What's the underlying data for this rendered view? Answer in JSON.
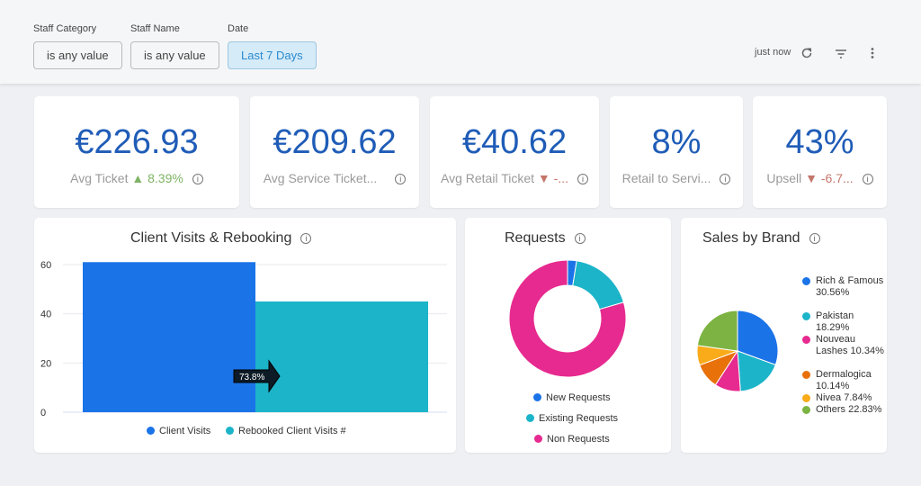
{
  "filters": [
    {
      "label": "Staff Category",
      "value": "is any value"
    },
    {
      "label": "Staff Name",
      "value": "is any value"
    },
    {
      "label": "Date",
      "value": "Last 7 Days"
    }
  ],
  "header": {
    "updated": "just now",
    "icons": [
      "refresh-icon",
      "filter-icon",
      "more-vertical-icon"
    ]
  },
  "kpis": [
    {
      "value": "€226.93",
      "label": "Avg Ticket",
      "delta": "▲ 8.39%",
      "delta_dir": "up"
    },
    {
      "value": "€209.62",
      "label": "Avg Service Ticket...",
      "delta": "",
      "delta_dir": ""
    },
    {
      "value": "€40.62",
      "label": "Avg Retail Ticket",
      "delta": "▼ -...",
      "delta_dir": "down"
    },
    {
      "value": "8%",
      "label": "Retail to Servi...",
      "delta": "",
      "delta_dir": ""
    },
    {
      "value": "43%",
      "label": "Upsell",
      "delta": "▼ -6.7...",
      "delta_dir": "down"
    }
  ],
  "colors": {
    "primary": "#1f5cb7",
    "blue": "#1b73e8",
    "teal": "#1cb4c9",
    "pink": "#e62a8f",
    "orange": "#e8710a",
    "yellow": "#f9ab19",
    "green": "#7cb342"
  },
  "chart_data": [
    {
      "type": "bar",
      "title": "Client Visits & Rebooking",
      "ylim": [
        0,
        60
      ],
      "yticks": [
        "0",
        "20",
        "40",
        "60"
      ],
      "grid": true,
      "legend": "bottom",
      "series": [
        {
          "name": "Client Visits",
          "value": 61,
          "color": "#1b73e8"
        },
        {
          "name": "Rebooked Client Visits #",
          "value": 45,
          "color": "#1cb4c9"
        }
      ],
      "annotation": "73.8%"
    },
    {
      "type": "pie",
      "donut": true,
      "title": "Requests",
      "legend": "bottom",
      "slices": [
        {
          "name": "New Requests",
          "value": 2.5,
          "color": "#1b73e8"
        },
        {
          "name": "Existing Requests",
          "value": 18,
          "color": "#1cb4c9"
        },
        {
          "name": "Non Requests",
          "value": 79.5,
          "color": "#e62a8f"
        }
      ]
    },
    {
      "type": "pie",
      "title": "Sales by Brand",
      "legend": "right",
      "slices": [
        {
          "name": "Rich & Famous",
          "label": "30.56%",
          "value": 30.56,
          "color": "#1b73e8"
        },
        {
          "name": "Pakistan",
          "label": "18.29%",
          "value": 18.29,
          "color": "#1cb4c9"
        },
        {
          "name": "Nouveau Lashes",
          "label": "10.34%",
          "value": 10.34,
          "color": "#e62a8f"
        },
        {
          "name": "Dermalogica",
          "label": "10.14%",
          "value": 10.14,
          "color": "#e8710a"
        },
        {
          "name": "Nivea",
          "label": "7.84%",
          "value": 7.84,
          "color": "#f9ab19"
        },
        {
          "name": "Others",
          "label": "22.83%",
          "value": 22.83,
          "color": "#7cb342"
        }
      ]
    }
  ]
}
